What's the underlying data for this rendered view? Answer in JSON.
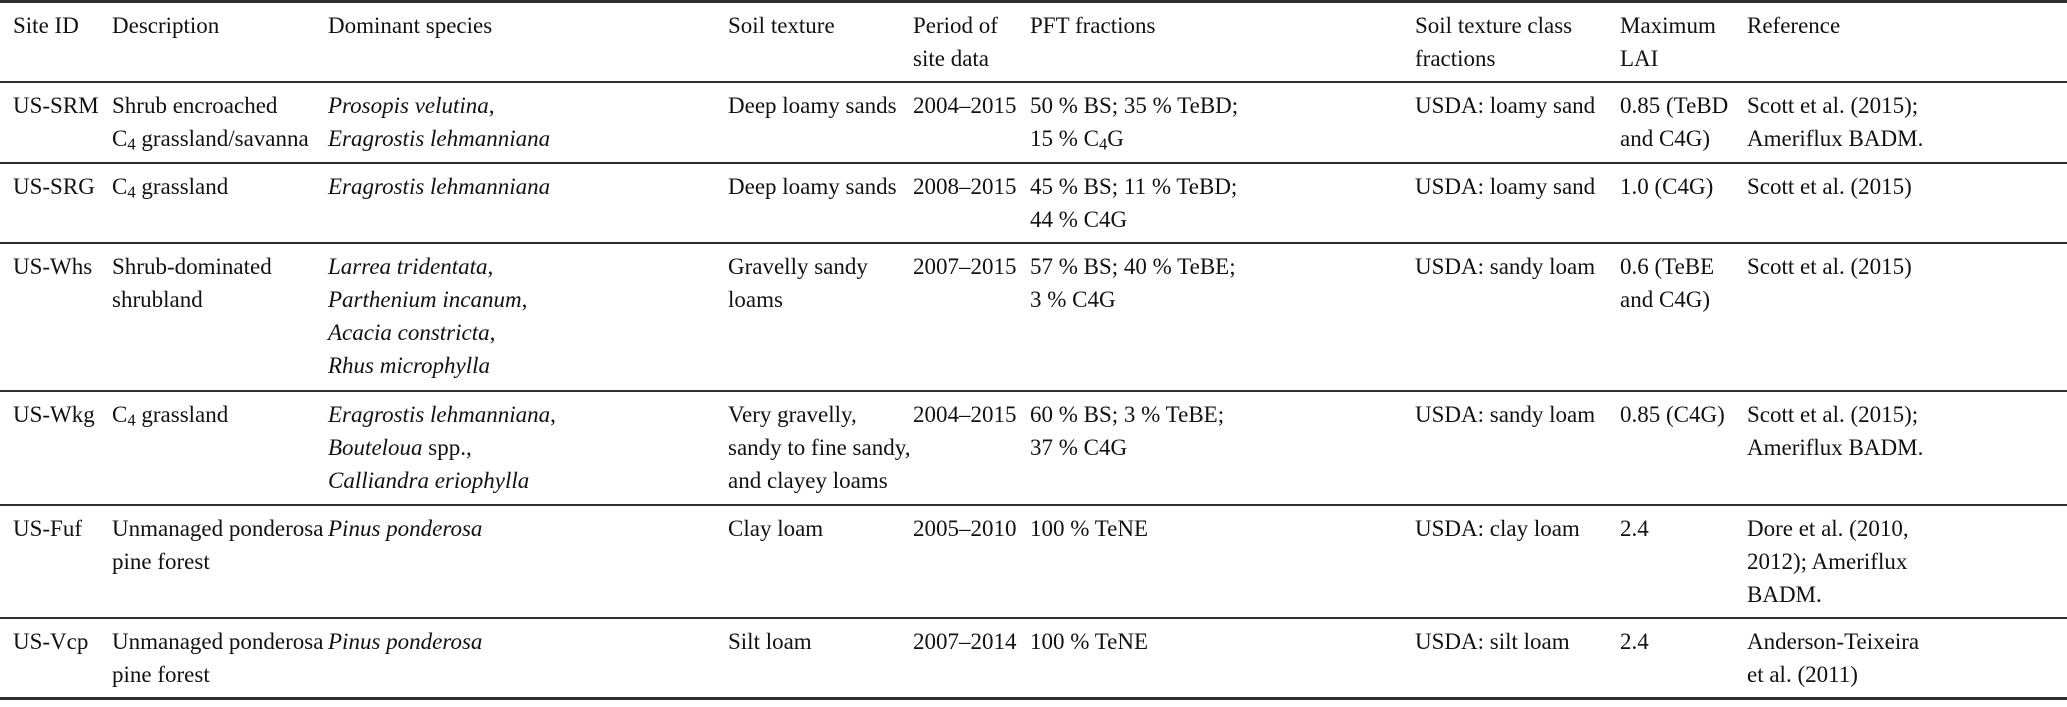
{
  "table": {
    "columns": [
      {
        "label": [
          "Site ID"
        ]
      },
      {
        "label": [
          "Description"
        ]
      },
      {
        "label": [
          "Dominant species"
        ]
      },
      {
        "label": [
          "Soil texture"
        ]
      },
      {
        "label": [
          "Period of",
          "site data"
        ]
      },
      {
        "label": [
          "PFT fractions"
        ]
      },
      {
        "label": [
          "Soil texture class",
          "fractions"
        ]
      },
      {
        "label": [
          "Maximum",
          "LAI"
        ]
      },
      {
        "label": [
          "Reference"
        ]
      }
    ],
    "rows": [
      [
        [
          "US-SRM"
        ],
        [
          "Shrub encroached",
          [
            "C",
            {
              "sub": "4"
            },
            " grassland/savanna"
          ]
        ],
        [
          [
            {
              "i": "Prosopis velutina"
            },
            ","
          ],
          [
            {
              "i": "Eragrostis lehmanniana"
            }
          ]
        ],
        [
          "Deep loamy sands"
        ],
        [
          "2004–2015"
        ],
        [
          "50 % BS; 35 % TeBD;",
          [
            "15 % C",
            {
              "sub": "4"
            },
            "G"
          ]
        ],
        [
          "USDA: loamy sand"
        ],
        [
          "0.85 (TeBD",
          "and C4G)"
        ],
        [
          "Scott et al. (2015);",
          "Ameriflux BADM."
        ]
      ],
      [
        [
          "US-SRG"
        ],
        [
          [
            "C",
            {
              "sub": "4"
            },
            " grassland"
          ]
        ],
        [
          [
            {
              "i": "Eragrostis lehmanniana"
            }
          ]
        ],
        [
          "Deep loamy sands"
        ],
        [
          "2008–2015"
        ],
        [
          "45 % BS; 11 % TeBD;",
          "44 % C4G"
        ],
        [
          "USDA: loamy sand"
        ],
        [
          "1.0 (C4G)"
        ],
        [
          "Scott et al. (2015)"
        ]
      ],
      [
        [
          "US-Whs"
        ],
        [
          "Shrub-dominated",
          "shrubland"
        ],
        [
          [
            {
              "i": "Larrea tridentata"
            },
            ","
          ],
          [
            {
              "i": "Parthenium incanum"
            },
            ","
          ],
          [
            {
              "i": "Acacia constricta"
            },
            ","
          ],
          [
            {
              "i": "Rhus microphylla"
            }
          ]
        ],
        [
          "Gravelly sandy",
          "loams"
        ],
        [
          "2007–2015"
        ],
        [
          "57 % BS; 40 % TeBE;",
          "3 % C4G"
        ],
        [
          "USDA: sandy loam"
        ],
        [
          "0.6 (TeBE",
          "and C4G)"
        ],
        [
          "Scott et al. (2015)"
        ]
      ],
      [
        [
          "US-Wkg"
        ],
        [
          [
            "C",
            {
              "sub": "4"
            },
            " grassland"
          ]
        ],
        [
          [
            {
              "i": "Eragrostis lehmanniana"
            },
            ","
          ],
          [
            {
              "i": "Bouteloua"
            },
            " spp.,"
          ],
          [
            {
              "i": "Calliandra eriophylla"
            }
          ]
        ],
        [
          "Very gravelly,",
          "sandy to fine sandy,",
          "and clayey loams"
        ],
        [
          "2004–2015"
        ],
        [
          "60 % BS; 3 % TeBE;",
          "37 % C4G"
        ],
        [
          "USDA: sandy loam"
        ],
        [
          "0.85 (C4G)"
        ],
        [
          "Scott et al. (2015);",
          "Ameriflux BADM."
        ]
      ],
      [
        [
          "US-Fuf"
        ],
        [
          "Unmanaged ponderosa",
          "pine forest"
        ],
        [
          [
            {
              "i": "Pinus ponderosa"
            }
          ]
        ],
        [
          "Clay loam"
        ],
        [
          "2005–2010"
        ],
        [
          "100 % TeNE"
        ],
        [
          "USDA: clay loam"
        ],
        [
          "2.4"
        ],
        [
          "Dore et al. (2010,",
          "2012); Ameriflux",
          "BADM."
        ]
      ],
      [
        [
          "US-Vcp"
        ],
        [
          "Unmanaged ponderosa",
          "pine forest"
        ],
        [
          [
            {
              "i": "Pinus ponderosa"
            }
          ]
        ],
        [
          "Silt loam"
        ],
        [
          "2007–2014"
        ],
        [
          "100 % TeNE"
        ],
        [
          "USDA: silt loam"
        ],
        [
          "2.4"
        ],
        [
          "Anderson-Teixeira",
          "et al. (2011)"
        ]
      ]
    ]
  }
}
